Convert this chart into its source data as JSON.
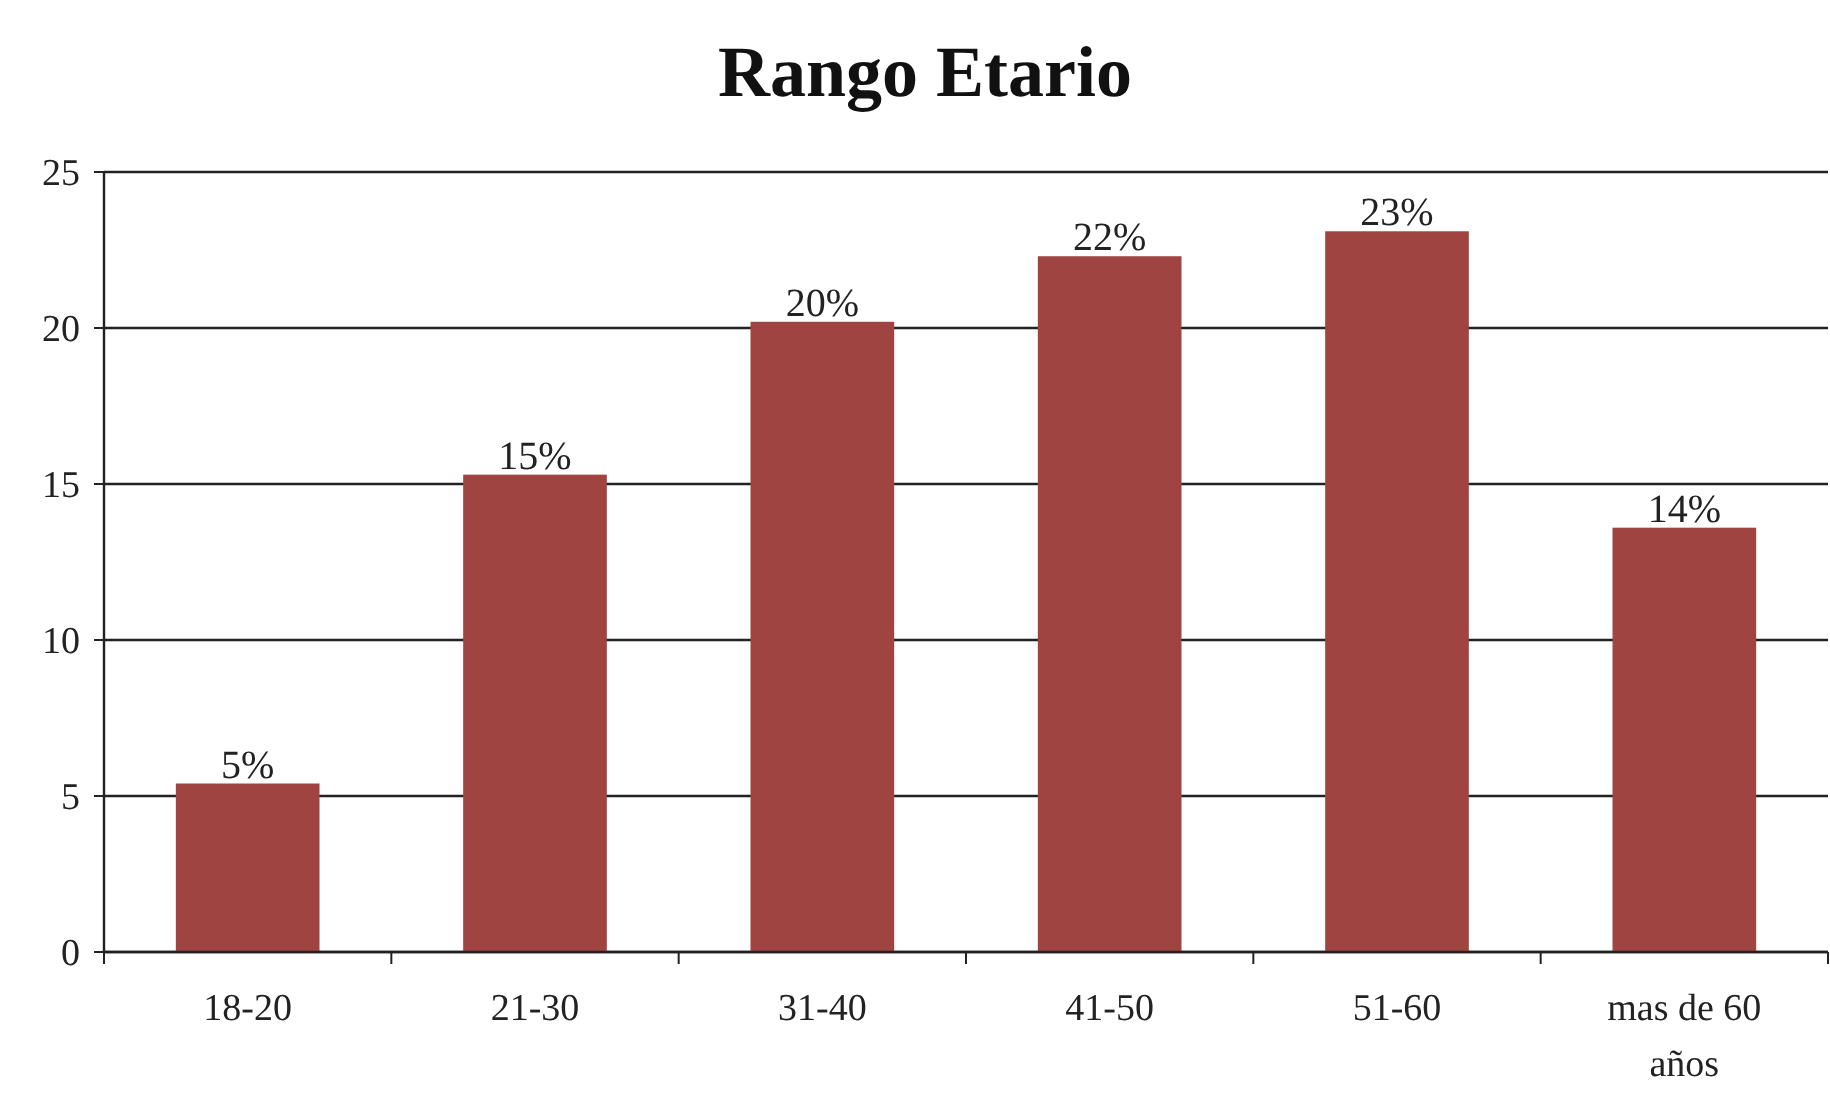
{
  "chart_data": {
    "type": "bar",
    "title": "Rango Etario",
    "categories": [
      "18-20",
      "21-30",
      "31-40",
      "41-50",
      "51-60",
      "mas de 60 años"
    ],
    "values": [
      5.4,
      15.3,
      20.2,
      22.3,
      23.1,
      13.6
    ],
    "value_labels": [
      "5%",
      "15%",
      "20%",
      "22%",
      "23%",
      "14%"
    ],
    "color": "#a04441",
    "ylim": [
      0,
      25
    ],
    "yticks": [
      0,
      5,
      10,
      15,
      20,
      25
    ],
    "grid": "y"
  }
}
